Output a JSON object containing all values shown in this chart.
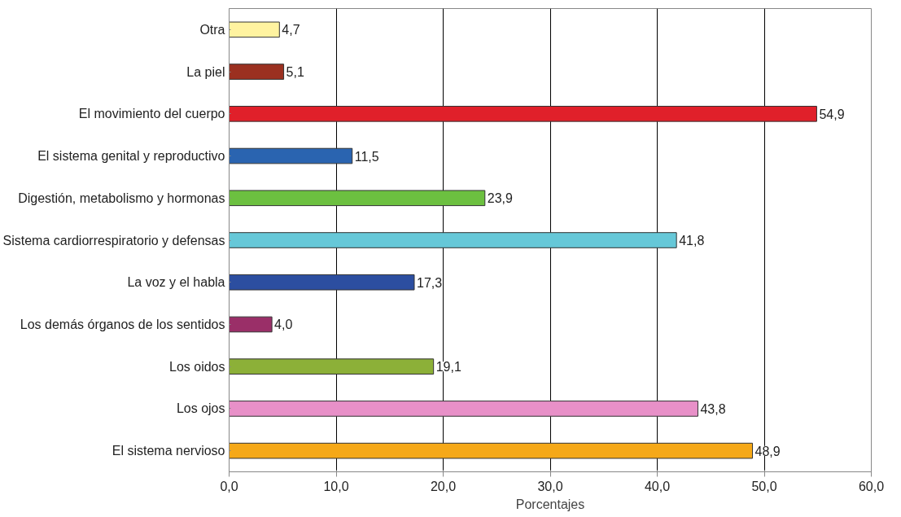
{
  "chart_data": {
    "type": "bar",
    "orientation": "horizontal",
    "xlabel": "Porcentajes",
    "categories": [
      "Otra",
      "La piel",
      "El movimiento del cuerpo",
      "El sistema genital y reproductivo",
      "Digestión, metabolismo y hormonas",
      "Sistema cardiorrespiratorio y defensas",
      "La voz y el habla",
      "Los demás órganos de los sentidos",
      "Los oidos",
      "Los ojos",
      "El sistema nervioso"
    ],
    "values": [
      4.7,
      5.1,
      54.9,
      11.5,
      23.9,
      41.8,
      17.3,
      4.0,
      19.1,
      43.8,
      48.9
    ],
    "colors": [
      "#fff3a0",
      "#9b3020",
      "#e0202a",
      "#2a64b0",
      "#6cc040",
      "#66c8d8",
      "#2c4ea0",
      "#9a2f68",
      "#8cb038",
      "#e890c8",
      "#f5a818"
    ],
    "value_labels": [
      "4,7",
      "5,1",
      "54,9",
      "11,5",
      "23,9",
      "41,8",
      "17,3",
      "4,0",
      "19,1",
      "43,8",
      "48,9"
    ],
    "xlim": [
      0,
      60
    ],
    "xticks": [
      {
        "value": 0,
        "label": "0,0"
      },
      {
        "value": 10,
        "label": "10,0"
      },
      {
        "value": 20,
        "label": "20,0"
      },
      {
        "value": 30,
        "label": "30,0"
      },
      {
        "value": 40,
        "label": "40,0"
      },
      {
        "value": 50,
        "label": "50,0"
      },
      {
        "value": 60,
        "label": "60,0"
      }
    ],
    "grid": "x"
  }
}
